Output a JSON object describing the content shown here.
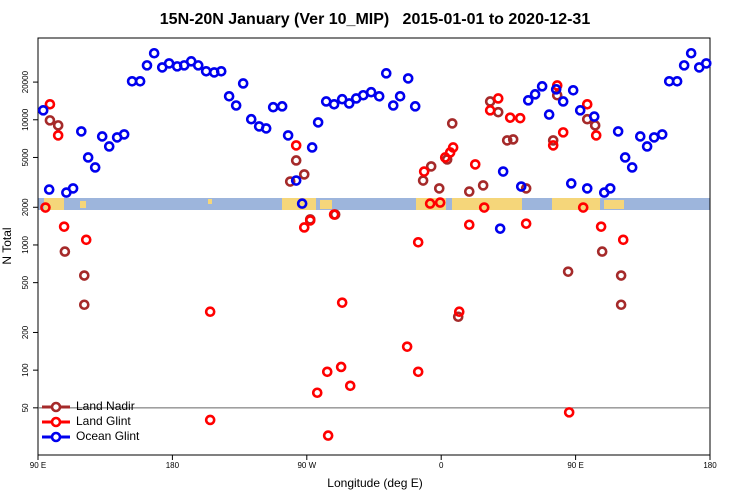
{
  "chart_data": {
    "type": "scatter",
    "title": "15N-20N January (Ver 10_MIP)   2015-01-01 to 2020-12-31",
    "x_label": "Longitude (deg E)",
    "y_label": "N Total",
    "log_y": true,
    "xlim": [
      -270,
      180
    ],
    "ylim": [
      21,
      45000
    ],
    "xticks": [
      {
        "value": -270,
        "label": "90 E"
      },
      {
        "value": -180,
        "label": "180"
      },
      {
        "value": -90,
        "label": "90 W"
      },
      0,
      {
        "value": 90,
        "label": "90 E"
      },
      180
    ],
    "yticks": [
      50,
      100,
      200,
      500,
      1000,
      2000,
      5000,
      10000,
      20000
    ],
    "legend": "bottom-left",
    "series": [
      {
        "name": "Land Nadir",
        "color": "#a52a2a",
        "x": [
          -262,
          -256.5,
          -252,
          -239,
          -239,
          -101.1,
          -97.1,
          -91.7,
          -87.7,
          -71,
          -12.1,
          -6.7,
          -1.3,
          4,
          7.4,
          11.4,
          18.8,
          28.1,
          32.8,
          38.2,
          44.2,
          48.2,
          56.9,
          75,
          77.7,
          85,
          97.8,
          103.1,
          107.8,
          120.5,
          120.5
        ],
        "values": [
          9890,
          9020,
          885,
          570,
          333,
          3210,
          4730,
          3660,
          1600,
          1750,
          3270,
          4240,
          2830,
          4820,
          9350,
          267,
          2670,
          2990,
          14000,
          11500,
          6840,
          6970,
          2830,
          6840,
          15700,
          612,
          10100,
          9020,
          885,
          570,
          333
        ]
      },
      {
        "name": "Land Glint",
        "color": "#ff0000",
        "x": [
          -265,
          -262,
          -256.5,
          -252.5,
          -237.7,
          -154.7,
          -154.7,
          -97.1,
          -91.7,
          -87.7,
          -71.7,
          -66.3,
          -83,
          -76.3,
          -75.7,
          -67,
          -60.9,
          -22.8,
          -15.4,
          -15.4,
          -11.4,
          -7.4,
          -0.7,
          2.7,
          6,
          8,
          12.1,
          18.8,
          22.8,
          28.8,
          32.8,
          38.2,
          46.2,
          52.9,
          56.9,
          75,
          77.7,
          81.7,
          85.7,
          95.1,
          97.8,
          103.8,
          107.1,
          121.9
        ],
        "values": [
          1990,
          13300,
          7500,
          1400,
          1100,
          293,
          40,
          6240,
          1380,
          1570,
          1750,
          346,
          66,
          97,
          30,
          106,
          75,
          154,
          1050,
          97,
          3860,
          2140,
          2180,
          5000,
          5480,
          6010,
          293,
          1450,
          4400,
          1990,
          11900,
          14800,
          10400,
          10300,
          1480,
          6240,
          18800,
          7930,
          46,
          1990,
          13300,
          7500,
          1400,
          1100
        ]
      },
      {
        "name": "Ocean Glint",
        "color": "#0000ee",
        "x": [
          -266.5,
          -262.5,
          -251,
          -246.5,
          -241,
          -236.4,
          -231.7,
          -227,
          -222.3,
          -217,
          -212.3,
          -207,
          -201.6,
          -197,
          -192.2,
          -186.8,
          -182.2,
          -176.8,
          -172.1,
          -167.4,
          -162.7,
          -157.4,
          -152,
          -147.3,
          -142,
          -137.3,
          -132.6,
          -127.2,
          -121.9,
          -117.2,
          -112.5,
          -106.5,
          -102.5,
          -97.1,
          -93.1,
          -86.4,
          -82.4,
          -77,
          -71.7,
          -66.3,
          -61.6,
          -56.9,
          -52.2,
          -46.9,
          -41.5,
          -36.8,
          -32.1,
          -27.5,
          -22.1,
          -17.4,
          39.5,
          41.5,
          53.6,
          58.3,
          62.9,
          67.6,
          72.3,
          77,
          81.7,
          87.1,
          88.4,
          93.1,
          97.8,
          102.5,
          109.2,
          113.2,
          118.5,
          123.2,
          127.9,
          133.3,
          137.9,
          142.6,
          148,
          152.7,
          158,
          162.7,
          167.4,
          172.8,
          177.5
        ],
        "values": [
          11900,
          2770,
          2620,
          2830,
          8070,
          5000,
          4160,
          7360,
          6120,
          7230,
          7640,
          20300,
          20300,
          27200,
          34000,
          26200,
          28200,
          26700,
          27200,
          29300,
          27200,
          24400,
          23900,
          24400,
          15400,
          13000,
          19500,
          10100,
          8850,
          8530,
          12600,
          12800,
          7500,
          3270,
          2140,
          6010,
          9530,
          14000,
          13300,
          14600,
          13500,
          14800,
          15700,
          16600,
          15400,
          23500,
          13000,
          15400,
          21400,
          12800,
          1350,
          3860,
          2930,
          14300,
          15960,
          18500,
          11000,
          17500,
          14000,
          3100,
          17200,
          11900,
          2830,
          10600,
          2620,
          2830,
          8070,
          5000,
          4160,
          7360,
          6120,
          7230,
          7640,
          20300,
          20300,
          27200,
          34000,
          26200,
          28200
        ]
      }
    ]
  }
}
